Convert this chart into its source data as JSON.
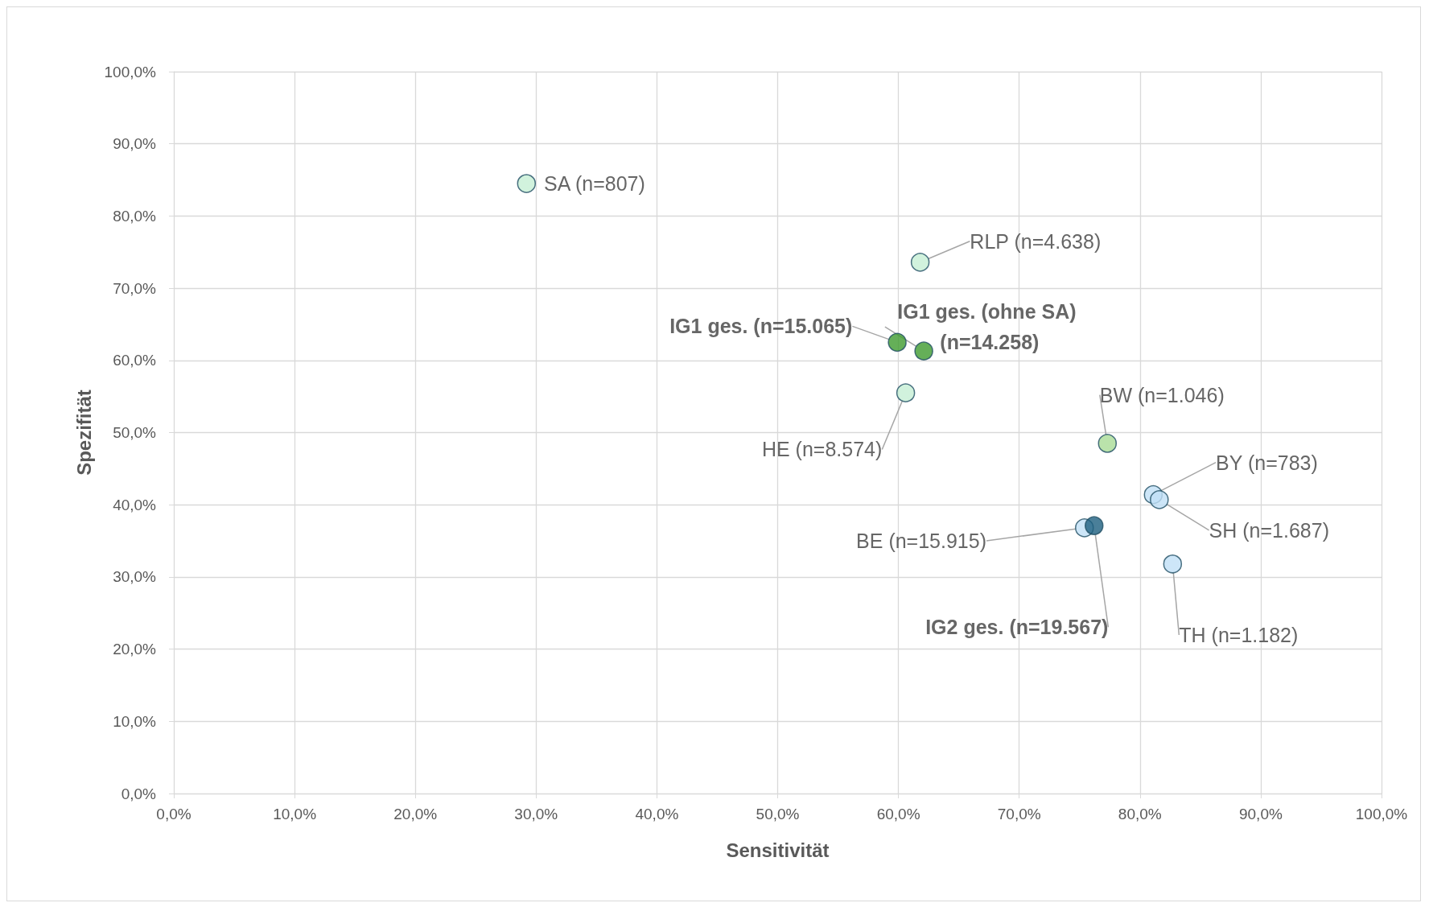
{
  "chart_data": {
    "type": "scatter",
    "xlabel": "Sensitivität",
    "ylabel": "Spezifität",
    "xlim": [
      0,
      100
    ],
    "ylim": [
      0,
      100
    ],
    "xticks": [
      {
        "value": 0,
        "label": "0,0%"
      },
      {
        "value": 10,
        "label": "10,0%"
      },
      {
        "value": 20,
        "label": "20,0%"
      },
      {
        "value": 30,
        "label": "30,0%"
      },
      {
        "value": 40,
        "label": "40,0%"
      },
      {
        "value": 50,
        "label": "50,0%"
      },
      {
        "value": 60,
        "label": "60,0%"
      },
      {
        "value": 70,
        "label": "70,0%"
      },
      {
        "value": 80,
        "label": "80,0%"
      },
      {
        "value": 90,
        "label": "90,0%"
      },
      {
        "value": 100,
        "label": "100,0%"
      }
    ],
    "yticks": [
      {
        "value": 0,
        "label": "0,0%"
      },
      {
        "value": 10,
        "label": "10,0%"
      },
      {
        "value": 20,
        "label": "20,0%"
      },
      {
        "value": 30,
        "label": "30,0%"
      },
      {
        "value": 40,
        "label": "40,0%"
      },
      {
        "value": 50,
        "label": "50,0%"
      },
      {
        "value": 60,
        "label": "60,0%"
      },
      {
        "value": 70,
        "label": "70,0%"
      },
      {
        "value": 80,
        "label": "80,0%"
      },
      {
        "value": 90,
        "label": "90,0%"
      },
      {
        "value": 100,
        "label": "100,0%"
      }
    ],
    "grid": true,
    "legend": false,
    "marker": "circle",
    "series": [
      {
        "name": "SA (n=807)",
        "color": "#c6efd4",
        "x": [
          29.2
        ],
        "values": [
          84.5
        ]
      },
      {
        "name": "RLP (n=4.638)",
        "color": "#c6efd4",
        "x": [
          61.8
        ],
        "values": [
          73.6
        ]
      },
      {
        "name": "IG1 ges. (n=15.065)",
        "color": "#3f9b2e",
        "x": [
          59.9
        ],
        "values": [
          62.5
        ]
      },
      {
        "name": "IG1 ges. (ohne SA) (n=14.258)",
        "color": "#3f9b2e",
        "x": [
          62.1
        ],
        "values": [
          61.3
        ]
      },
      {
        "name": "HE (n=8.574)",
        "color": "#c6efd4",
        "x": [
          60.6
        ],
        "values": [
          55.5
        ]
      },
      {
        "name": "BW (n=1.046)",
        "color": "#a9dc96",
        "x": [
          77.3
        ],
        "values": [
          48.5
        ]
      },
      {
        "name": "BY (n=783)",
        "color": "#c0e0f6",
        "x": [
          81.1
        ],
        "values": [
          41.4
        ]
      },
      {
        "name": "SH (n=1.687)",
        "color": "#c0e0f6",
        "x": [
          81.6
        ],
        "values": [
          40.7
        ]
      },
      {
        "name": "BE (n=15.915)",
        "color": "#c0e0f6",
        "x": [
          75.4
        ],
        "values": [
          36.8
        ]
      },
      {
        "name": "IG2 ges. (n=19.567)",
        "color": "#1d5f80",
        "x": [
          76.2
        ],
        "values": [
          37.1
        ]
      },
      {
        "name": "TH (n=1.182)",
        "color": "#c0e0f6",
        "x": [
          82.7
        ],
        "values": [
          31.8
        ]
      }
    ]
  }
}
